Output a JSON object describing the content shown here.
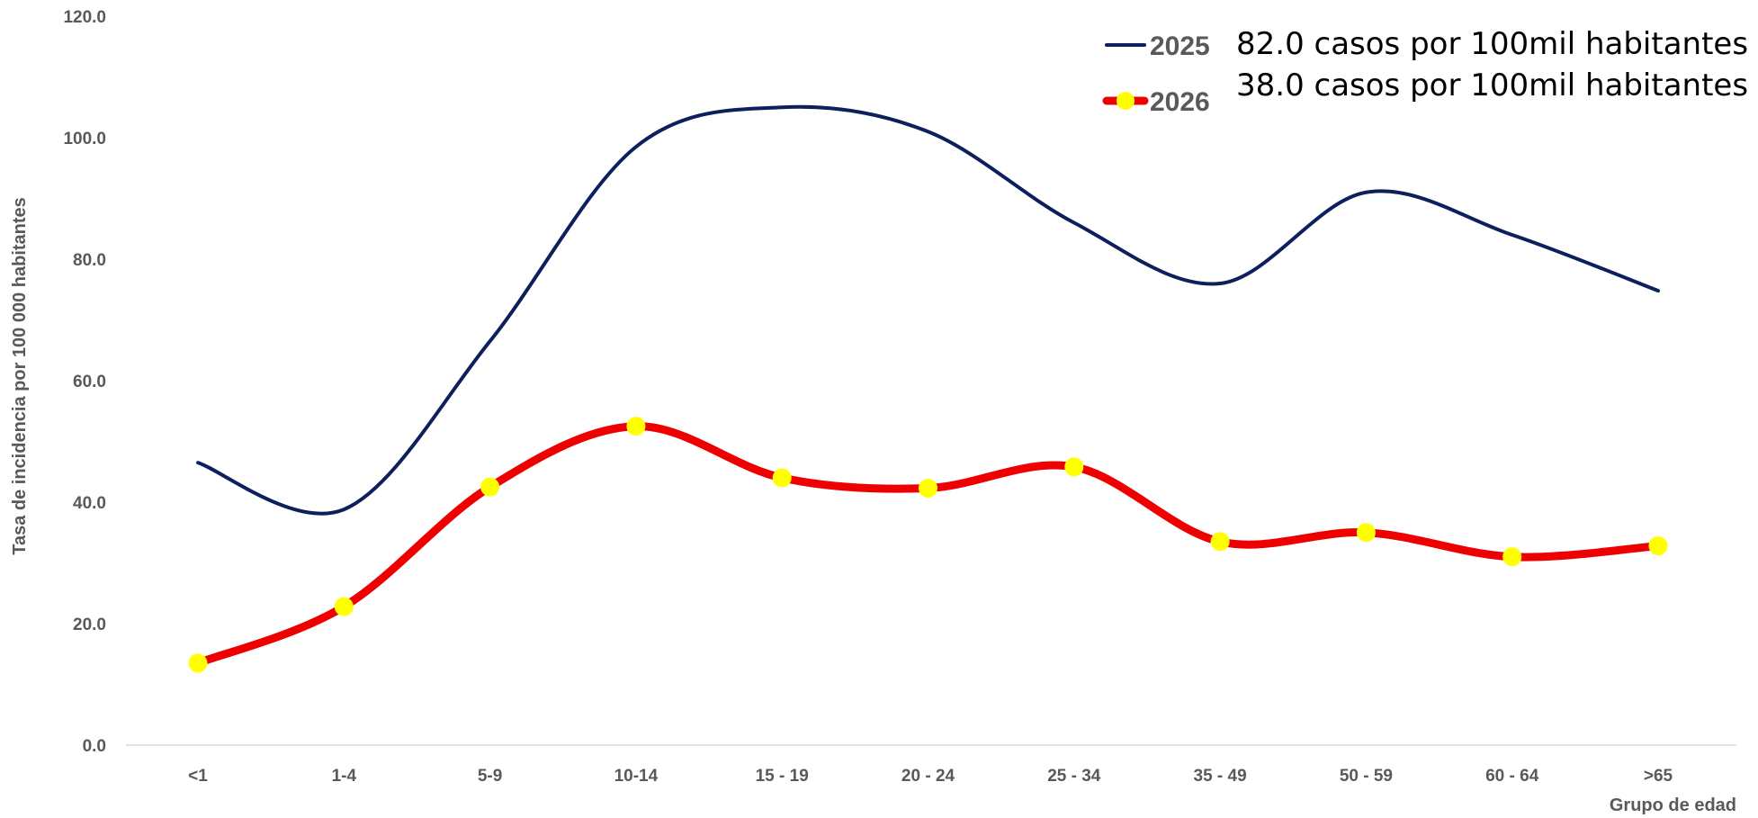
{
  "chart_data": {
    "type": "line",
    "title": "",
    "xlabel": "Grupo de edad",
    "ylabel": "Tasa de incidencia por 100 000 habitantes",
    "categories": [
      "<1",
      "1-4",
      "5-9",
      "10-14",
      "15 - 19",
      "20 - 24",
      "25 - 34",
      "35 - 49",
      "50 - 59",
      "60 - 64",
      ">65"
    ],
    "ylim": [
      0,
      120
    ],
    "yticks": [
      "0.0",
      "20.0",
      "40.0",
      "60.0",
      "80.0",
      "100.0",
      "120.0"
    ],
    "grid": false,
    "smooth": true,
    "legend_position": "top-right",
    "series": [
      {
        "name": "2025",
        "note": "82.0 casos por 100mil habitantes",
        "color": "#0d1f5c",
        "markers": false,
        "values": [
          46.5,
          38.8,
          66.5,
          98.5,
          105.0,
          101.0,
          86.0,
          76.0,
          91.0,
          84.0,
          74.8
        ]
      },
      {
        "name": "2026",
        "note": "38.0 casos por 100mil habitantes",
        "color": "#ee0000",
        "marker_color": "#ffff00",
        "markers": true,
        "values": [
          13.5,
          22.8,
          42.5,
          52.5,
          44.0,
          42.3,
          45.8,
          33.5,
          35.0,
          31.0,
          32.8
        ]
      }
    ]
  }
}
